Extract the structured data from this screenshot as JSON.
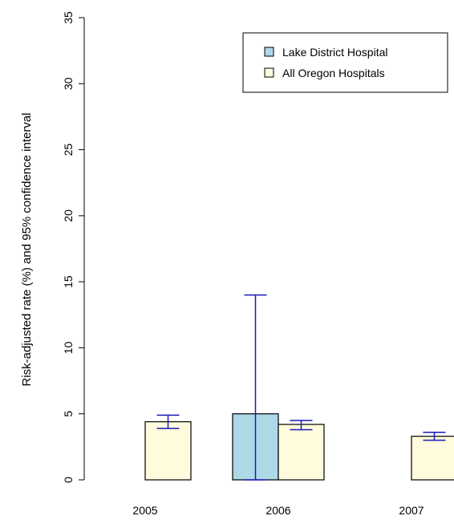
{
  "chart_data": {
    "type": "bar",
    "ylabel": "Risk-adjusted rate (%) and 95% confidence interval",
    "ylim": [
      0,
      35
    ],
    "yticks": [
      0,
      5,
      10,
      15,
      20,
      25,
      30,
      35
    ],
    "categories": [
      "2005",
      "2006",
      "2007"
    ],
    "series": [
      {
        "name": "Lake District Hospital",
        "color": "#add8e6",
        "values": [
          null,
          5.0,
          null
        ],
        "ci": [
          null,
          [
            0,
            14.0
          ],
          null
        ]
      },
      {
        "name": "All Oregon Hospitals",
        "color": "#fffbdc",
        "values": [
          4.4,
          4.2,
          3.3
        ],
        "ci": [
          [
            3.9,
            4.9
          ],
          [
            3.8,
            4.5
          ],
          [
            3.0,
            3.6
          ]
        ]
      }
    ],
    "error_bar_color": "#1a1ab8",
    "legend": {
      "position": "top-right"
    },
    "grid": false
  }
}
